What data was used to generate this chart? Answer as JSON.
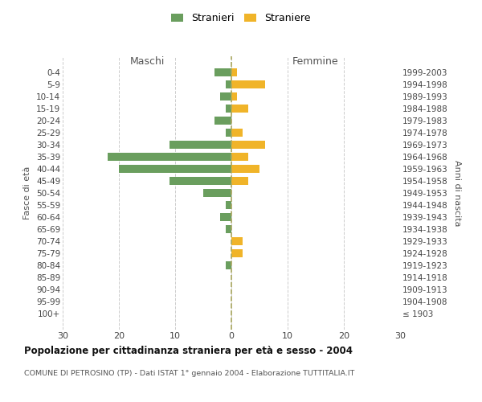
{
  "age_groups": [
    "100+",
    "95-99",
    "90-94",
    "85-89",
    "80-84",
    "75-79",
    "70-74",
    "65-69",
    "60-64",
    "55-59",
    "50-54",
    "45-49",
    "40-44",
    "35-39",
    "30-34",
    "25-29",
    "20-24",
    "15-19",
    "10-14",
    "5-9",
    "0-4"
  ],
  "birth_years": [
    "≤ 1903",
    "1904-1908",
    "1909-1913",
    "1914-1918",
    "1919-1923",
    "1924-1928",
    "1929-1933",
    "1934-1938",
    "1939-1943",
    "1944-1948",
    "1949-1953",
    "1954-1958",
    "1959-1963",
    "1964-1968",
    "1969-1973",
    "1974-1978",
    "1979-1983",
    "1984-1988",
    "1989-1993",
    "1994-1998",
    "1999-2003"
  ],
  "males": [
    0,
    0,
    0,
    0,
    1,
    0,
    0,
    1,
    2,
    1,
    5,
    11,
    20,
    22,
    11,
    1,
    3,
    1,
    2,
    1,
    3
  ],
  "females": [
    0,
    0,
    0,
    0,
    0,
    2,
    2,
    0,
    0,
    0,
    0,
    3,
    5,
    3,
    6,
    2,
    0,
    3,
    1,
    6,
    1
  ],
  "male_color": "#6a9e5e",
  "female_color": "#f0b429",
  "title": "Popolazione per cittadinanza straniera per età e sesso - 2004",
  "subtitle": "COMUNE DI PETROSINO (TP) - Dati ISTAT 1° gennaio 2004 - Elaborazione TUTTITALIA.IT",
  "ylabel_left": "Fasce di età",
  "ylabel_right": "Anni di nascita",
  "header_left": "Maschi",
  "header_right": "Femmine",
  "legend_males": "Stranieri",
  "legend_females": "Straniere",
  "xlim": 30,
  "background_color": "#ffffff",
  "grid_color": "#cccccc"
}
